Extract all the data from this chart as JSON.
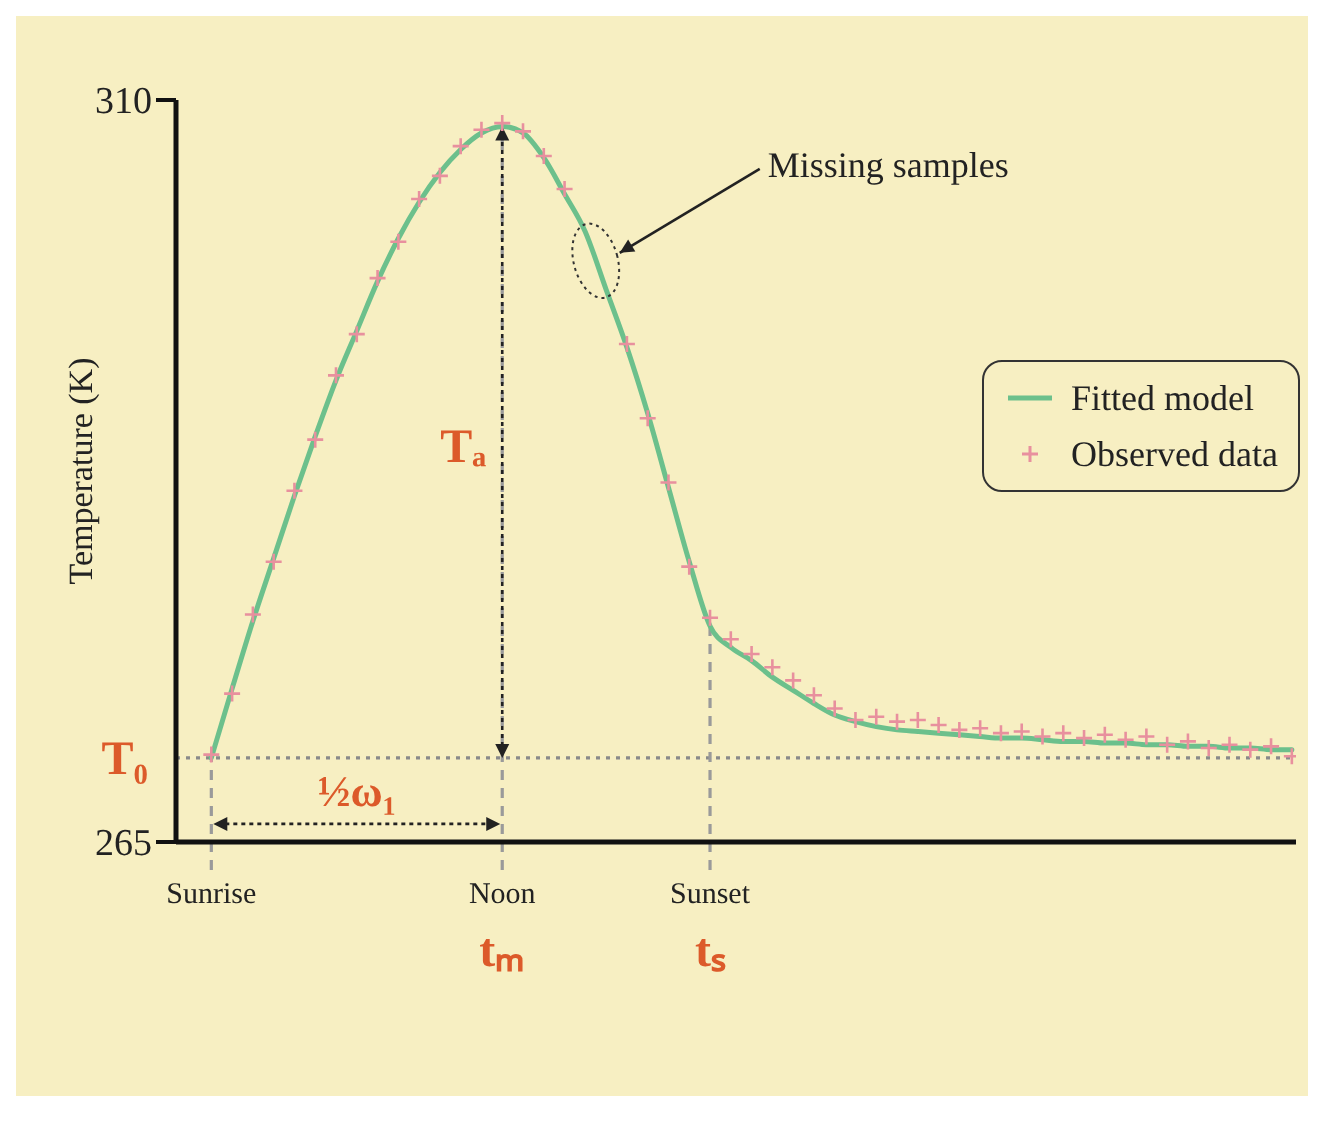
{
  "chart_data": {
    "type": "line",
    "ylabel": "Temperature (K)",
    "categories": [
      "Sunrise",
      null,
      null,
      null,
      null,
      null,
      null,
      null,
      null,
      null,
      null,
      null,
      null,
      null,
      "Noon",
      null,
      null,
      null,
      null,
      null,
      null,
      null,
      null,
      null,
      "Sunset",
      null,
      null,
      null,
      null,
      null,
      null,
      null,
      null,
      null,
      null,
      null,
      null,
      null,
      null,
      null,
      null,
      null,
      null,
      null,
      null,
      null,
      null,
      null,
      null,
      null,
      null,
      null,
      null
    ],
    "series": [
      {
        "name": "Fitted model",
        "color": "#6cc08c",
        "values": [
          270.1,
          274.3,
          278.4,
          282.2,
          286.0,
          289.6,
          293.0,
          296.0,
          299.0,
          301.6,
          303.8,
          305.6,
          307.0,
          308.0,
          308.4,
          308.0,
          306.5,
          304.3,
          302.0,
          298.5,
          295.0,
          291.0,
          286.5,
          282.0,
          278.1,
          276.8,
          276.0,
          275.0,
          274.2,
          273.4,
          272.7,
          272.3,
          272.0,
          271.8,
          271.7,
          271.6,
          271.5,
          271.4,
          271.3,
          271.3,
          271.2,
          271.1,
          271.1,
          271.0,
          271.0,
          270.9,
          270.9,
          270.8,
          270.8,
          270.7,
          270.7,
          270.6,
          270.6
        ]
      },
      {
        "name": "Observed data",
        "type": "scatter",
        "marker": "cross",
        "color": "#e8909e",
        "values": [
          270.3,
          274.0,
          278.8,
          282.0,
          286.3,
          289.4,
          293.3,
          295.8,
          299.2,
          301.4,
          304.0,
          305.4,
          307.2,
          308.2,
          308.6,
          308.1,
          306.6,
          304.6,
          null,
          null,
          295.2,
          290.7,
          286.8,
          281.7,
          278.6,
          277.3,
          276.4,
          275.6,
          274.8,
          273.9,
          273.1,
          272.4,
          272.6,
          272.3,
          272.4,
          272.1,
          271.8,
          271.9,
          271.6,
          271.7,
          271.4,
          271.6,
          271.3,
          271.5,
          271.2,
          271.4,
          270.9,
          271.1,
          270.7,
          270.9,
          270.6,
          270.8,
          270.2
        ]
      }
    ],
    "ylim": [
      265,
      310
    ],
    "yticks": [
      265,
      310
    ],
    "legend": "right",
    "ref_lines": [
      {
        "axis": "y",
        "value": 270.1,
        "label": "T₀",
        "color": "#8a8a8a",
        "line_style": "dotted"
      },
      {
        "axis": "x",
        "value": "Sunrise",
        "color": "#9a9a9a",
        "line_style": "dashed"
      },
      {
        "axis": "x",
        "value": "Noon",
        "color": "#9a9a9a",
        "line_style": "dashed"
      },
      {
        "axis": "x",
        "value": "Sunset",
        "color": "#9a9a9a",
        "line_style": "dashed"
      }
    ],
    "annotations": [
      "Missing samples",
      {
        "text": "Tₐ",
        "x": "Noon",
        "y": 289
      },
      "½ω₁",
      "tₘ",
      "tₛ"
    ]
  }
}
